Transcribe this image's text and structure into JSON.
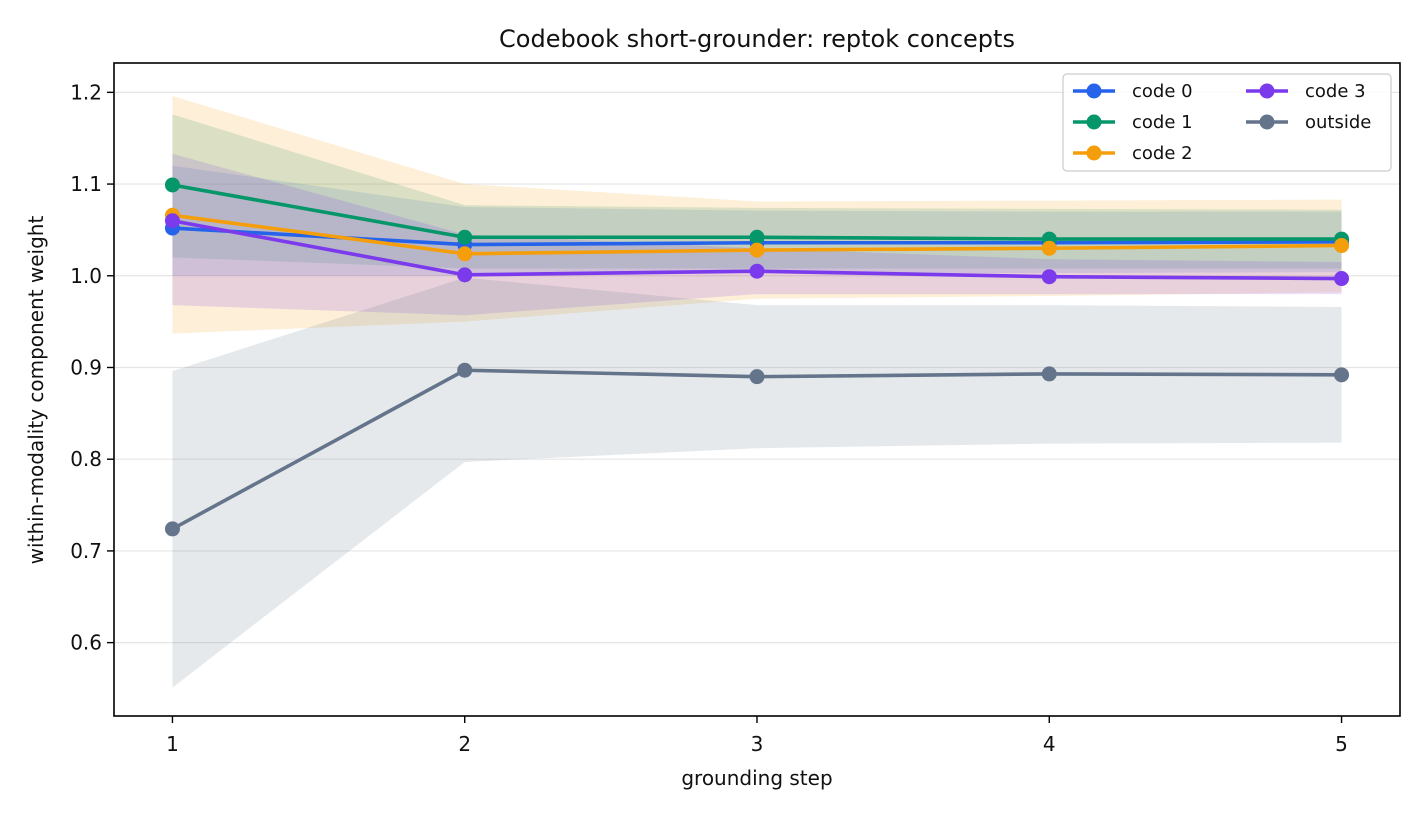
{
  "chart_data": {
    "type": "line",
    "title": "Codebook short-grounder: reptok concepts",
    "xlabel": "grounding step",
    "ylabel": "within-modality component weight",
    "x": [
      1,
      2,
      3,
      4,
      5
    ],
    "xlim": [
      0.8,
      5.2
    ],
    "ylim": [
      0.52,
      1.232
    ],
    "yticks": [
      0.6,
      0.7,
      0.8,
      0.9,
      1.0,
      1.1,
      1.2
    ],
    "ytick_labels": [
      "0.6",
      "0.7",
      "0.8",
      "0.9",
      "1.0",
      "1.1",
      "1.2"
    ],
    "xticks": [
      1,
      2,
      3,
      4,
      5
    ],
    "xtick_labels": [
      "1",
      "2",
      "3",
      "4",
      "5"
    ],
    "grid": "horizontal",
    "legend": {
      "placement": "top-right",
      "columns": 2
    },
    "series": [
      {
        "name": "code 0",
        "color": "#2563eb",
        "values": [
          1.052,
          1.034,
          1.036,
          1.036,
          1.037
        ],
        "lower": [
          1.0,
          1.0,
          1.003,
          1.003,
          1.004
        ],
        "upper": [
          1.12,
          1.075,
          1.071,
          1.07,
          1.07
        ]
      },
      {
        "name": "code 1",
        "color": "#059669",
        "values": [
          1.099,
          1.042,
          1.042,
          1.04,
          1.04
        ],
        "lower": [
          1.02,
          1.008,
          1.008,
          1.008,
          1.008
        ],
        "upper": [
          1.176,
          1.077,
          1.074,
          1.073,
          1.072
        ]
      },
      {
        "name": "code 2",
        "color": "#f59e0b",
        "values": [
          1.066,
          1.024,
          1.028,
          1.03,
          1.033
        ],
        "lower": [
          0.937,
          0.95,
          0.975,
          0.978,
          0.982
        ],
        "upper": [
          1.196,
          1.1,
          1.081,
          1.082,
          1.083
        ]
      },
      {
        "name": "code 3",
        "color": "#7c3aed",
        "values": [
          1.06,
          1.001,
          1.005,
          0.999,
          0.997
        ],
        "lower": [
          0.968,
          0.957,
          0.98,
          0.98,
          0.98
        ],
        "upper": [
          1.133,
          1.045,
          1.03,
          1.018,
          1.015
        ]
      },
      {
        "name": "outside",
        "color": "#64748b",
        "values": [
          0.724,
          0.897,
          0.89,
          0.893,
          0.892
        ],
        "lower": [
          0.551,
          0.797,
          0.812,
          0.817,
          0.818
        ],
        "upper": [
          0.896,
          0.998,
          0.968,
          0.968,
          0.966
        ]
      }
    ]
  }
}
